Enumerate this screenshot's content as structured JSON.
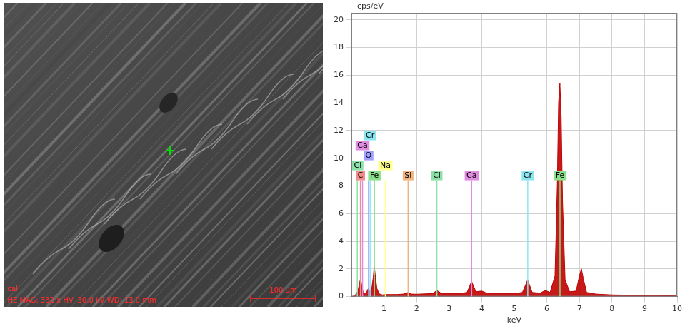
{
  "chart_data": {
    "type": "area",
    "title": "cps/eV",
    "x_label": "keV",
    "color": "#c00000",
    "grid": true,
    "xlim": [
      0,
      10
    ],
    "xticks": [
      1,
      2,
      3,
      4,
      5,
      6,
      7,
      8,
      9,
      10
    ],
    "ylim": [
      0,
      20.5
    ],
    "yticks": [
      0,
      2,
      4,
      6,
      8,
      10,
      12,
      14,
      16,
      18,
      20
    ],
    "x": [
      0.0,
      0.1,
      0.2,
      0.25,
      0.28,
      0.31,
      0.36,
      0.42,
      0.48,
      0.52,
      0.56,
      0.62,
      0.67,
      0.7,
      0.73,
      0.78,
      0.85,
      0.95,
      1.05,
      1.2,
      1.4,
      1.6,
      1.74,
      1.85,
      2.0,
      2.3,
      2.5,
      2.62,
      2.75,
      3.0,
      3.3,
      3.55,
      3.69,
      3.82,
      4.0,
      4.15,
      4.5,
      5.0,
      5.25,
      5.41,
      5.55,
      5.8,
      5.95,
      6.1,
      6.25,
      6.32,
      6.36,
      6.4,
      6.44,
      6.48,
      6.56,
      6.7,
      6.9,
      7.0,
      7.06,
      7.12,
      7.22,
      7.5,
      8.0,
      8.5,
      9.0,
      9.5,
      10.0
    ],
    "values": [
      0,
      0.05,
      0.4,
      1.0,
      1.3,
      0.9,
      0.3,
      0.2,
      0.4,
      0.6,
      0.4,
      0.5,
      1.4,
      2.2,
      1.6,
      0.6,
      0.2,
      0.12,
      0.15,
      0.15,
      0.15,
      0.18,
      0.3,
      0.18,
      0.17,
      0.2,
      0.22,
      0.45,
      0.25,
      0.22,
      0.22,
      0.3,
      1.1,
      0.35,
      0.4,
      0.25,
      0.22,
      0.22,
      0.3,
      1.2,
      0.3,
      0.25,
      0.45,
      0.3,
      1.5,
      8,
      14,
      15.4,
      13,
      7,
      1.2,
      0.35,
      0.4,
      1.5,
      2.0,
      1.3,
      0.3,
      0.18,
      0.12,
      0.1,
      0.08,
      0.06,
      0.05
    ],
    "annotations": [
      {
        "text": "C",
        "x": 0.277,
        "color": "#f08c8c"
      },
      {
        "text": "Fe",
        "x": 0.705,
        "color": "#8ce08c"
      },
      {
        "text": "Si",
        "x": 1.74,
        "color": "#f0b482"
      },
      {
        "text": "Cl",
        "x": 2.622,
        "color": "#8ce0a8"
      },
      {
        "text": "Ca",
        "x": 3.691,
        "color": "#e08ce0"
      },
      {
        "text": "Cr",
        "x": 5.414,
        "color": "#8ce6f0"
      },
      {
        "text": "Fe",
        "x": 6.403,
        "color": "#8ce08c"
      },
      {
        "text": "Cl",
        "x": 0.18,
        "color": "#8ce0a8"
      },
      {
        "text": "O",
        "x": 0.525,
        "color": "#a0a0ff"
      },
      {
        "text": "Na",
        "x": 1.041,
        "color": "#ffff8c"
      },
      {
        "text": "Ca",
        "x": 0.341,
        "color": "#e08ce0"
      },
      {
        "text": "Cr",
        "x": 0.573,
        "color": "#8ce6f0"
      }
    ]
  },
  "micrograph": {
    "label": "cal",
    "info": "HE MAG: 332 x HV: 30.0 kV WD: 13.0 mm",
    "scale_bar": "100 µm"
  }
}
